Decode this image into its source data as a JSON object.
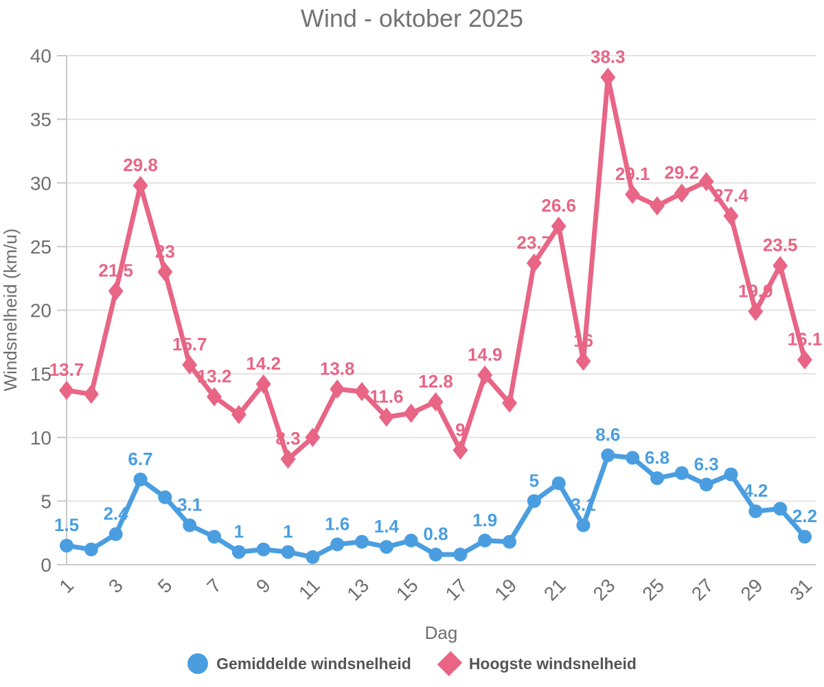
{
  "title": "Wind - oktober 2025",
  "colors": {
    "grid": "#E3E3E3",
    "axis": "#C8C8C8",
    "title_text": "#737373",
    "tick_text": "#6E6E6E",
    "legend_text": "#555555",
    "average_series": "#4A9EE0",
    "highest_series": "#E86585"
  },
  "legend": [
    {
      "label": "Gemiddelde windsnelheid",
      "marker": "circle",
      "color": "#4A9EE0"
    },
    {
      "label": "Hoogste windsnelheid",
      "marker": "diamond",
      "color": "#E86585"
    }
  ],
  "chart_data": {
    "type": "line",
    "title": "Wind - oktober 2025",
    "xlabel": "Dag",
    "ylabel": "Windsnelheid (km/u)",
    "x": [
      1,
      2,
      3,
      4,
      5,
      6,
      7,
      8,
      9,
      10,
      11,
      12,
      13,
      14,
      15,
      16,
      17,
      18,
      19,
      20,
      21,
      22,
      23,
      24,
      25,
      26,
      27,
      28,
      29,
      30,
      31
    ],
    "x_tick_days": [
      1,
      3,
      5,
      7,
      9,
      11,
      13,
      15,
      17,
      19,
      21,
      23,
      25,
      27,
      29,
      31
    ],
    "ylim": [
      0,
      40
    ],
    "y_ticks": [
      0,
      5,
      10,
      15,
      20,
      25,
      30,
      35,
      40
    ],
    "grid": true,
    "legend_position": "bottom",
    "series": [
      {
        "name": "Hoogste windsnelheid",
        "marker": "diamond",
        "color": "#E86585",
        "values": [
          13.7,
          13.4,
          21.5,
          29.8,
          23,
          15.7,
          13.2,
          11.8,
          14.2,
          8.3,
          10,
          13.8,
          13.6,
          11.6,
          11.9,
          12.8,
          9,
          14.9,
          12.7,
          23.7,
          26.6,
          16,
          38.3,
          29.1,
          28.2,
          29.2,
          30.1,
          27.4,
          19.9,
          23.5,
          16.1
        ],
        "point_labels": {
          "1": "13.7",
          "3": "21.5",
          "4": "29.8",
          "5": "23",
          "6": "15.7",
          "7": "13.2",
          "9": "14.2",
          "10": "8.3",
          "12": "13.8",
          "14": "11.6",
          "16": "12.8",
          "17": "9",
          "18": "14.9",
          "20": "23.7",
          "21": "26.6",
          "22": "16",
          "23": "38.3",
          "24": "29.1",
          "26": "29.2",
          "28": "27.4",
          "29": "19.9",
          "30": "23.5",
          "31": "16.1"
        }
      },
      {
        "name": "Gemiddelde windsnelheid",
        "marker": "circle",
        "color": "#4A9EE0",
        "values": [
          1.5,
          1.2,
          2.4,
          6.7,
          5.3,
          3.1,
          2.2,
          1,
          1.2,
          1,
          0.6,
          1.6,
          1.8,
          1.4,
          1.9,
          0.8,
          0.8,
          1.9,
          1.8,
          5,
          6.4,
          3.1,
          8.6,
          8.4,
          6.8,
          7.2,
          6.3,
          7.1,
          4.2,
          4.4,
          2.2
        ],
        "point_labels": {
          "1": "1.5",
          "3": "2.4",
          "4": "6.7",
          "6": "3.1",
          "8": "1",
          "10": "1",
          "12": "1.6",
          "14": "1.4",
          "16": "0.8",
          "18": "1.9",
          "20": "5",
          "22": "3.1",
          "23": "8.6",
          "25": "6.8",
          "27": "6.3",
          "29": "4.2",
          "31": "2.2"
        }
      }
    ]
  }
}
